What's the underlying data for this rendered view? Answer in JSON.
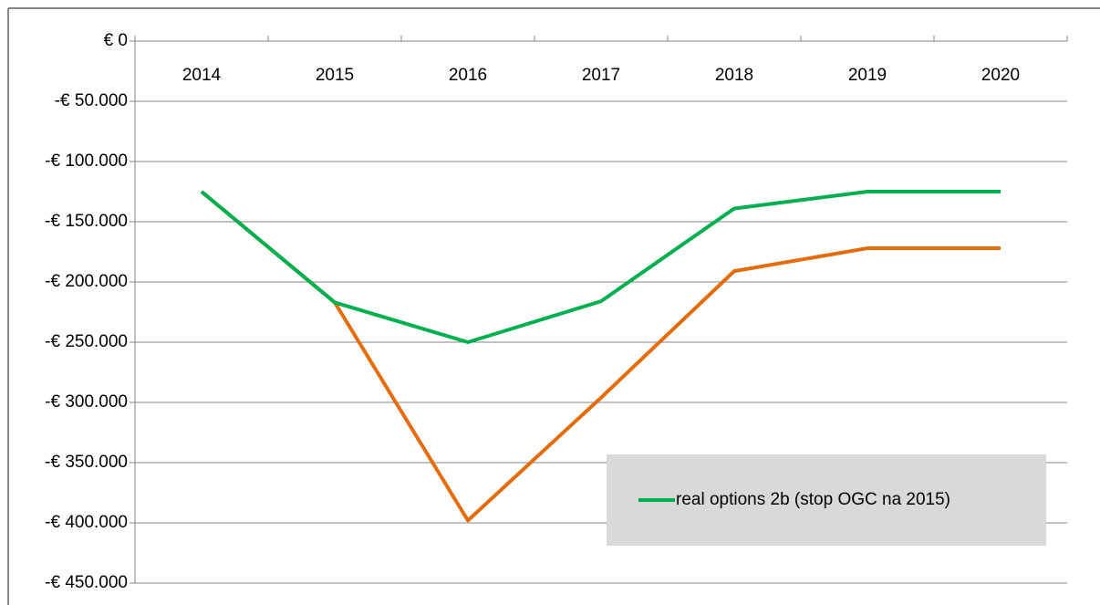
{
  "chart_data": {
    "type": "line",
    "categories": [
      "2014",
      "2015",
      "2016",
      "2017",
      "2018",
      "2019",
      "2020"
    ],
    "series": [
      {
        "name": "real options 2b (stop OGC na 2015)",
        "color": "#00b050",
        "values": [
          -125000,
          -217000,
          -250000,
          -216000,
          -139000,
          -125000,
          -125000
        ]
      },
      {
        "color": "#e46c0a",
        "values": [
          -125000,
          -217000,
          -398000,
          -296000,
          -191000,
          -172000,
          -172000
        ]
      }
    ],
    "ylim": [
      -450000,
      0
    ],
    "yticks": [
      {
        "value": 0,
        "label": "€ 0"
      },
      {
        "value": -50000,
        "label": "-€ 50.000"
      },
      {
        "value": -100000,
        "label": "-€ 100.000"
      },
      {
        "value": -150000,
        "label": "-€ 150.000"
      },
      {
        "value": -200000,
        "label": "-€ 200.000"
      },
      {
        "value": -250000,
        "label": "-€ 250.000"
      },
      {
        "value": -300000,
        "label": "-€ 300.000"
      },
      {
        "value": -350000,
        "label": "-€ 350.000"
      },
      {
        "value": -400000,
        "label": "-€ 400.000"
      },
      {
        "value": -450000,
        "label": "-€ 450.000"
      }
    ],
    "grid": true,
    "legend": "lower right"
  }
}
